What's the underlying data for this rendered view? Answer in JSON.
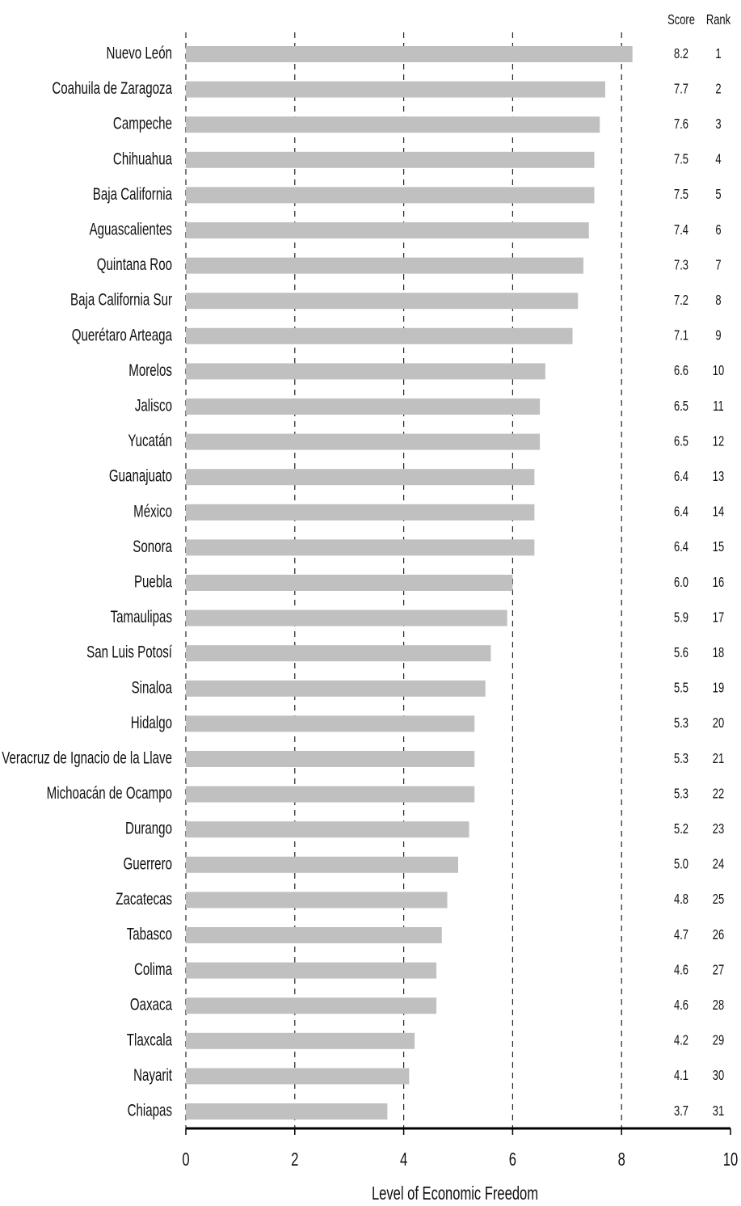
{
  "chart_data": {
    "type": "barh",
    "xlabel": "Level of Economic Freedom",
    "score_header": "Score",
    "rank_header": "Rank",
    "categories": [
      "Nuevo León",
      "Coahuila de Zaragoza",
      "Campeche",
      "Chihuahua",
      "Baja California",
      "Aguascalientes",
      "Quintana Roo",
      "Baja California Sur",
      "Querétaro  Arteaga",
      "Morelos",
      "Jalisco",
      "Yucatán",
      "Guanajuato",
      "México",
      "Sonora",
      "Puebla",
      "Tamaulipas",
      "San Luis Potosí",
      "Sinaloa",
      "Hidalgo",
      "Veracruz de Ignacio de la Llave",
      "Michoacán de Ocampo",
      "Durango",
      "Guerrero",
      "Zacatecas",
      "Tabasco",
      "Colima",
      "Oaxaca",
      "Tlaxcala",
      "Nayarit",
      "Chiapas"
    ],
    "values": [
      8.2,
      7.7,
      7.6,
      7.5,
      7.5,
      7.4,
      7.3,
      7.2,
      7.1,
      6.6,
      6.5,
      6.5,
      6.4,
      6.4,
      6.4,
      6,
      5.9,
      5.6,
      5.5,
      5.3,
      5.3,
      5.3,
      5.2,
      5,
      4.8,
      4.7,
      4.6,
      4.6,
      4.2,
      4.1,
      3.7
    ],
    "value_labels": [
      "8.2",
      "7.7",
      "7.6",
      "7.5",
      "7.5",
      "7.4",
      "7.3",
      "7.2",
      "7.1",
      "6.6",
      "6.5",
      "6.5",
      "6.4",
      "6.4",
      "6.4",
      "6.0",
      "5.9",
      "5.6",
      "5.5",
      "5.3",
      "5.3",
      "5.3",
      "5.2",
      "5.0",
      "4.8",
      "4.7",
      "4.6",
      "4.6",
      "4.2",
      "4.1",
      "3.7"
    ],
    "ranks": [
      1,
      2,
      3,
      4,
      5,
      6,
      7,
      8,
      9,
      10,
      11,
      12,
      13,
      14,
      15,
      16,
      17,
      18,
      19,
      20,
      21,
      22,
      23,
      24,
      25,
      26,
      27,
      28,
      29,
      30,
      31
    ],
    "color": "#c0c0c0",
    "xlim": [
      0,
      10
    ],
    "xticks": [
      0,
      2,
      4,
      6,
      8,
      10
    ],
    "grid": true
  }
}
